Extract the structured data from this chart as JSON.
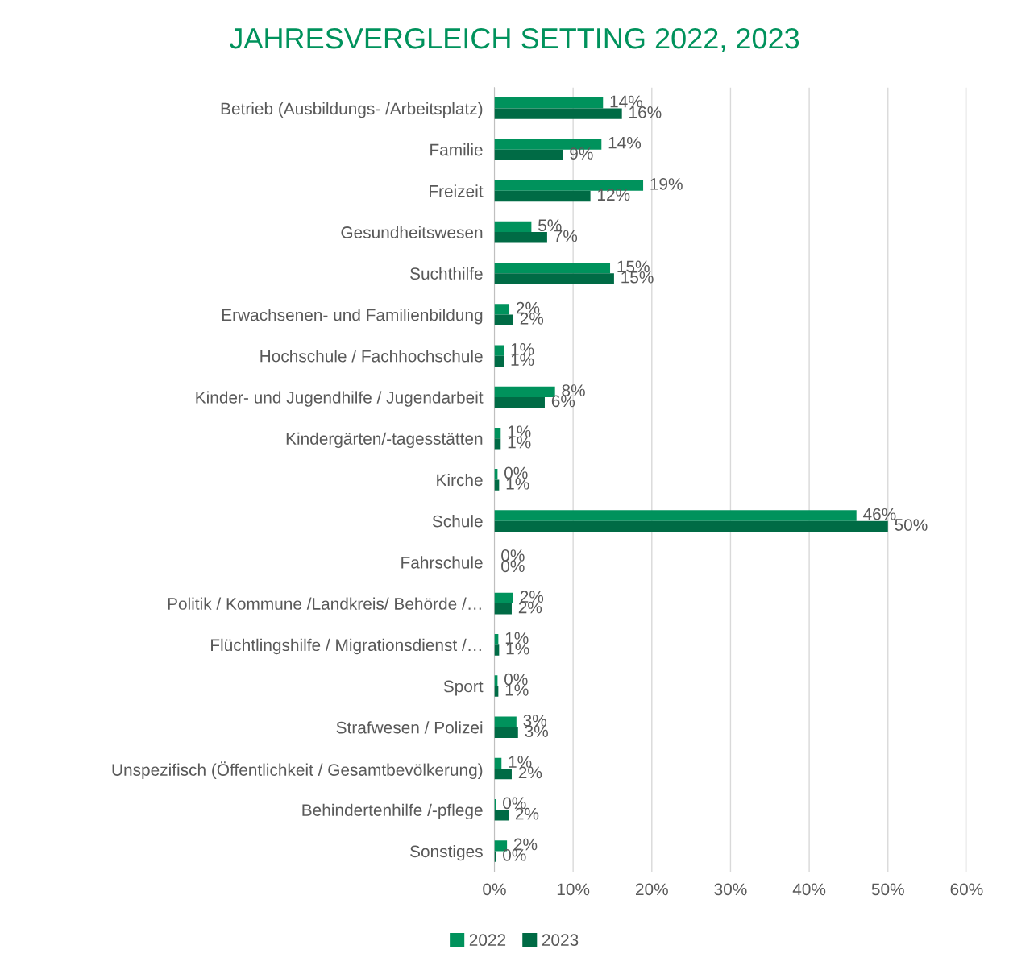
{
  "chart_data": {
    "type": "bar",
    "orientation": "horizontal",
    "title": "JAHRESVERGLEICH SETTING 2022, 2023",
    "categories": [
      "Betrieb (Ausbildungs- /Arbeitsplatz)",
      "Familie",
      "Freizeit",
      "Gesundheitswesen",
      "Suchthilfe",
      "Erwachsenen- und Familienbildung",
      "Hochschule / Fachhochschule",
      "Kinder- und Jugendhilfe / Jugendarbeit",
      "Kindergärten/-tagesstätten",
      "Kirche",
      "Schule",
      "Fahrschule",
      "Politik / Kommune /Landkreis/ Behörde /…",
      "Flüchtlingshilfe / Migrationsdienst /…",
      "Sport",
      "Strafwesen / Polizei",
      "Unspezifisch (Öffentlichkeit / Gesamtbevölkerung)",
      "Behindertenhilfe /-pflege",
      "Sonstiges"
    ],
    "series": [
      {
        "name": "2022",
        "color": "#00925c",
        "values": [
          13.8,
          13.6,
          18.9,
          4.7,
          14.7,
          1.9,
          1.2,
          7.7,
          0.8,
          0.4,
          46.0,
          0,
          2.4,
          0.5,
          0.4,
          2.8,
          0.9,
          0.2,
          1.6
        ],
        "value_labels": [
          "14%",
          "14%",
          "19%",
          "5%",
          "15%",
          "2%",
          "1%",
          "8%",
          "1%",
          "0%",
          "46%",
          "0%",
          "2%",
          "1%",
          "0%",
          "3%",
          "1%",
          "0%",
          "2%"
        ]
      },
      {
        "name": "2023",
        "color": "#006b45",
        "values": [
          16.2,
          8.7,
          12.2,
          6.7,
          15.2,
          2.4,
          1.2,
          6.4,
          0.8,
          0.6,
          50.0,
          0,
          2.2,
          0.6,
          0.5,
          3.0,
          2.2,
          1.8,
          0.2
        ],
        "value_labels": [
          "16%",
          "9%",
          "12%",
          "7%",
          "15%",
          "2%",
          "1%",
          "6%",
          "1%",
          "1%",
          "50%",
          "0%",
          "2%",
          "1%",
          "1%",
          "3%",
          "2%",
          "2%",
          "0%"
        ]
      }
    ],
    "xlim": [
      0,
      60
    ],
    "xticks": [
      {
        "value": 0,
        "label": "0%"
      },
      {
        "value": 10,
        "label": "10%"
      },
      {
        "value": 20,
        "label": "20%"
      },
      {
        "value": 30,
        "label": "30%"
      },
      {
        "value": 40,
        "label": "40%"
      },
      {
        "value": 50,
        "label": "50%"
      },
      {
        "value": 60,
        "label": "60%"
      }
    ],
    "grid": "x",
    "legend": "bottom"
  }
}
